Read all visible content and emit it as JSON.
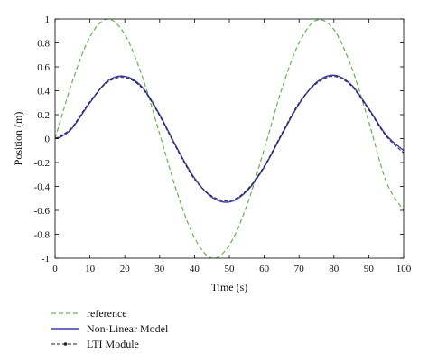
{
  "chart_data": {
    "type": "line",
    "title": "",
    "xlabel": "Time (s)",
    "ylabel": "Position (m)",
    "xlim": [
      0,
      100
    ],
    "ylim": [
      -1,
      1
    ],
    "xticks": [
      0,
      10,
      20,
      30,
      40,
      50,
      60,
      70,
      80,
      90,
      100
    ],
    "yticks": [
      -1,
      -0.8,
      -0.6,
      -0.4,
      -0.2,
      0,
      0.2,
      0.4,
      0.6,
      0.8,
      1
    ],
    "grid": false,
    "legend_position": "bottom-left",
    "series": [
      {
        "name": "reference",
        "style": "dashed",
        "color": "#6ab04c",
        "x": [
          0,
          5,
          10,
          15,
          20,
          25,
          30,
          35,
          40,
          45,
          50,
          55,
          60,
          65,
          70,
          75,
          80,
          85,
          90,
          95,
          100
        ],
        "y": [
          0,
          0.48,
          0.85,
          1.0,
          0.87,
          0.52,
          0.04,
          -0.45,
          -0.83,
          -1.0,
          -0.89,
          -0.56,
          -0.09,
          0.41,
          0.8,
          0.99,
          0.91,
          0.6,
          0.14,
          -0.36,
          -0.6
        ]
      },
      {
        "name": "Non-Linear Model",
        "style": "solid",
        "color": "#3a3ab0",
        "x": [
          0,
          2,
          5,
          10,
          15,
          20,
          25,
          30,
          35,
          40,
          45,
          50,
          55,
          60,
          65,
          70,
          75,
          80,
          85,
          90,
          95,
          100
        ],
        "y": [
          0,
          0.02,
          0.09,
          0.3,
          0.48,
          0.52,
          0.43,
          0.2,
          -0.08,
          -0.33,
          -0.49,
          -0.53,
          -0.44,
          -0.24,
          0.03,
          0.29,
          0.47,
          0.53,
          0.45,
          0.25,
          0.03,
          -0.1
        ]
      },
      {
        "name": "LTI Module",
        "style": "dashdot-marker",
        "color": "#222222",
        "x": [
          0,
          2,
          5,
          10,
          15,
          20,
          25,
          30,
          35,
          40,
          45,
          50,
          55,
          60,
          65,
          70,
          75,
          80,
          85,
          90,
          95,
          100
        ],
        "y": [
          0,
          0.03,
          0.1,
          0.31,
          0.47,
          0.51,
          0.42,
          0.19,
          -0.09,
          -0.34,
          -0.48,
          -0.52,
          -0.43,
          -0.23,
          0.04,
          0.3,
          0.46,
          0.52,
          0.44,
          0.24,
          0.02,
          -0.12
        ]
      }
    ]
  }
}
